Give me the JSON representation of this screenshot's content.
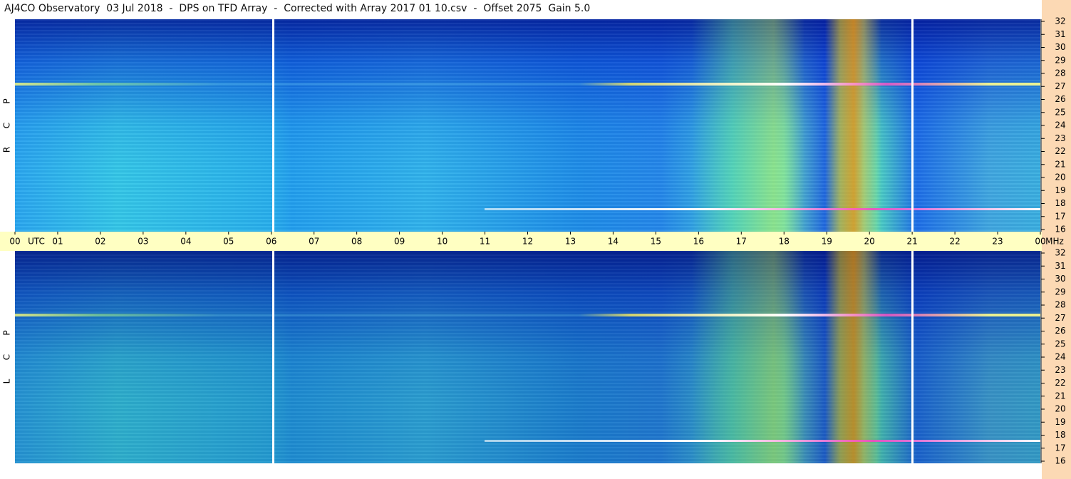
{
  "title": "AJ4CO Observatory  03 Jul 2018  -  DPS on TFD Array  -  Corrected with Array 2017 01 10.csv  -  Offset 2075  Gain 5.0",
  "panels": [
    {
      "letters": [
        "P",
        "C",
        "R"
      ]
    },
    {
      "letters": [
        "P",
        "C",
        "L"
      ]
    }
  ],
  "time_axis": {
    "hours": [
      "00",
      "01",
      "02",
      "03",
      "04",
      "05",
      "06",
      "07",
      "08",
      "09",
      "10",
      "11",
      "12",
      "13",
      "14",
      "15",
      "16",
      "17",
      "18",
      "19",
      "20",
      "21",
      "22",
      "23",
      "00"
    ],
    "unit": "UTC"
  },
  "freq_axis": {
    "ticks": [
      "16",
      "17",
      "18",
      "19",
      "20",
      "21",
      "22",
      "23",
      "24",
      "25",
      "26",
      "27",
      "28",
      "29",
      "30",
      "31",
      "32"
    ],
    "unit": "MHz"
  }
}
